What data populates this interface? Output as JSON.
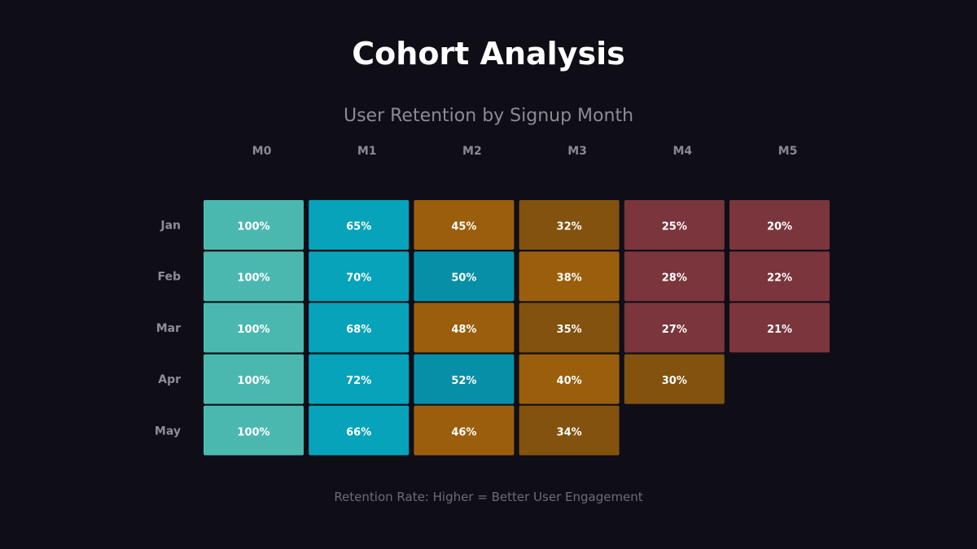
{
  "chart_data": {
    "type": "heatmap",
    "title": "Cohort Analysis",
    "subtitle": "User Retention by Signup Month",
    "footer": "Retention Rate: Higher = Better User Engagement",
    "columns": [
      "M0",
      "M1",
      "M2",
      "M3",
      "M4",
      "M5"
    ],
    "rows": [
      "Jan",
      "Feb",
      "Mar",
      "Apr",
      "May"
    ],
    "values": [
      [
        100,
        65,
        45,
        32,
        25,
        20
      ],
      [
        100,
        70,
        50,
        38,
        28,
        22
      ],
      [
        100,
        68,
        48,
        35,
        27,
        21
      ],
      [
        100,
        72,
        52,
        40,
        30,
        null
      ],
      [
        100,
        66,
        46,
        34,
        null,
        null
      ]
    ],
    "cell_labels": [
      [
        "100%",
        "65%",
        "45%",
        "32%",
        "25%",
        "20%"
      ],
      [
        "100%",
        "70%",
        "50%",
        "38%",
        "28%",
        "22%"
      ],
      [
        "100%",
        "68%",
        "48%",
        "35%",
        "27%",
        "21%"
      ],
      [
        "100%",
        "72%",
        "52%",
        "40%",
        "30%",
        null
      ],
      [
        "100%",
        "66%",
        "46%",
        "34%",
        null,
        null
      ]
    ],
    "colors": {
      "background": "#0f0e17",
      "m0": "#4bb8b0",
      "m1": "#06a3ba",
      "teal_mid": "#068fa6",
      "orange_high": "#9a5e0c",
      "orange_low": "#82520e",
      "maroon": "#7a353d",
      "cell_text": "#ffffff"
    }
  }
}
